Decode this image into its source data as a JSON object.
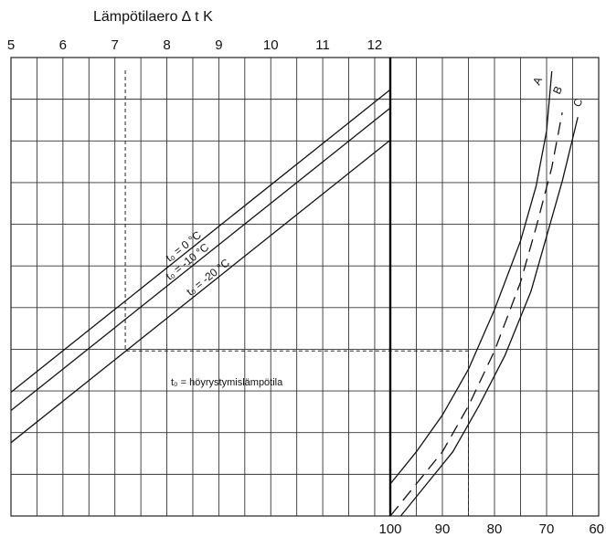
{
  "chart_data": {
    "type": "line",
    "title": "",
    "grid": true,
    "top_axis": {
      "label": "Lämpötilaero ∆ t K",
      "ticks": [
        "5",
        "6",
        "7",
        "8",
        "9",
        "10",
        "11",
        "12"
      ],
      "range": [
        5,
        12.3
      ]
    },
    "bottom_axis": {
      "label": "",
      "ticks": [
        "100",
        "90",
        "80",
        "70",
        "60"
      ],
      "range": [
        100,
        60
      ]
    },
    "left_series": [
      {
        "name": "t₀ = 0 °C",
        "x": [
          5.0,
          12.3
        ],
        "y": [
          0.27,
          0.93
        ]
      },
      {
        "name": "t₀ = -10 °C",
        "x": [
          5.0,
          12.3
        ],
        "y": [
          0.23,
          0.89
        ]
      },
      {
        "name": "t₀ = -20 °C",
        "x": [
          5.0,
          12.3
        ],
        "y": [
          0.16,
          0.82
        ]
      }
    ],
    "right_series": [
      {
        "name": "A",
        "style": "solid",
        "x": [
          100,
          95,
          90,
          85,
          80,
          75,
          72,
          70,
          69
        ],
        "y": [
          0.07,
          0.14,
          0.22,
          0.32,
          0.45,
          0.6,
          0.72,
          0.84,
          0.97
        ]
      },
      {
        "name": "B",
        "style": "dashed",
        "x": [
          100,
          95,
          90,
          85,
          80,
          75,
          72,
          69,
          67
        ],
        "y": [
          0.0,
          0.07,
          0.14,
          0.24,
          0.36,
          0.51,
          0.63,
          0.76,
          0.88
        ]
      },
      {
        "name": "C",
        "style": "solid",
        "x": [
          98,
          93,
          88,
          83,
          78,
          73,
          70,
          67,
          64
        ],
        "y": [
          0.0,
          0.07,
          0.14,
          0.24,
          0.35,
          0.49,
          0.61,
          0.73,
          0.87
        ]
      }
    ],
    "example_path": {
      "style": "dashed",
      "left_x": 7.2,
      "level_y": 0.36,
      "right_x": 85
    },
    "annotation": "t₀ = höyrystymislämpötila"
  }
}
